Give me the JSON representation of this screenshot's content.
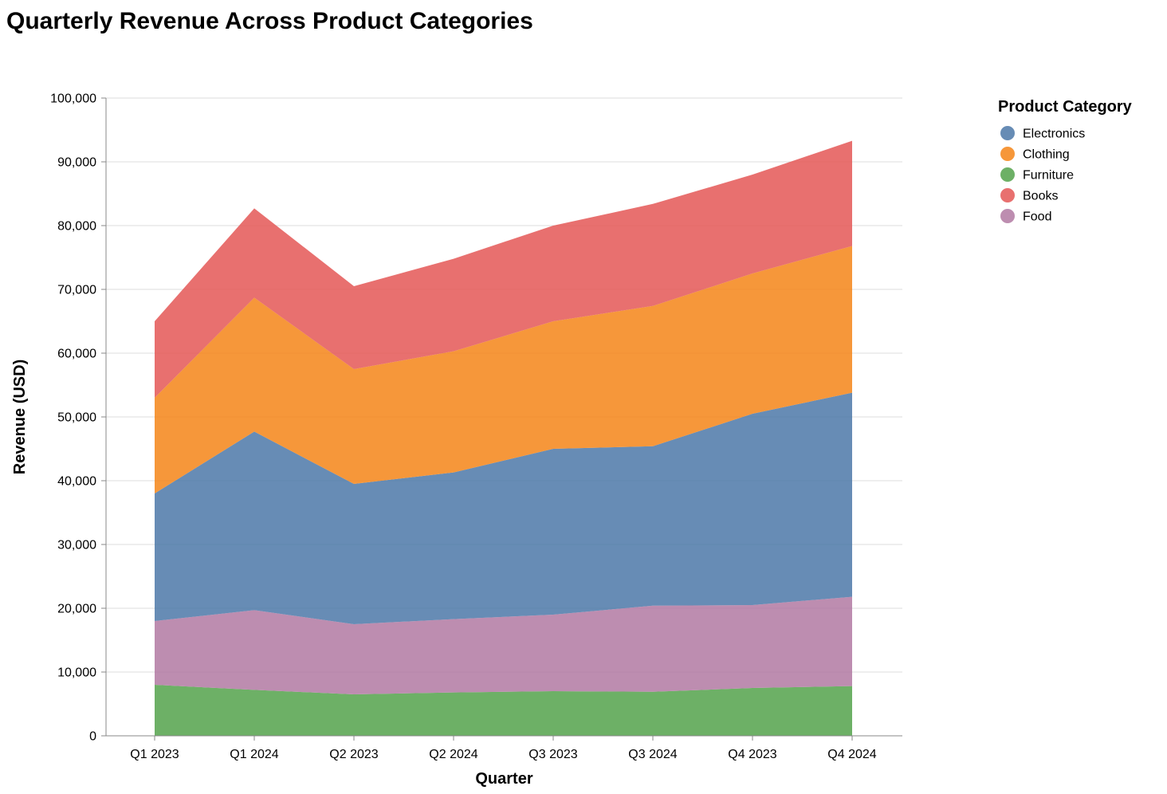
{
  "chart_data": {
    "type": "area",
    "stacked": true,
    "title": "Quarterly Revenue Across Product Categories",
    "xlabel": "Quarter",
    "ylabel": "Revenue (USD)",
    "ylim": [
      0,
      100000
    ],
    "y_ticks": [
      0,
      10000,
      20000,
      30000,
      40000,
      50000,
      60000,
      70000,
      80000,
      90000,
      100000
    ],
    "y_tick_labels": [
      "0",
      "10,000",
      "20,000",
      "30,000",
      "40,000",
      "50,000",
      "60,000",
      "70,000",
      "80,000",
      "90,000",
      "100,000"
    ],
    "grid": true,
    "legend_title": "Product Category",
    "legend_position": "top-right",
    "categories": [
      "Q1 2023",
      "Q1 2024",
      "Q2 2023",
      "Q2 2024",
      "Q3 2023",
      "Q3 2024",
      "Q4 2023",
      "Q4 2024"
    ],
    "stack_order": [
      "Furniture",
      "Food",
      "Electronics",
      "Clothing",
      "Books"
    ],
    "series": [
      {
        "name": "Electronics",
        "color": "#4c78a8",
        "values": [
          20000,
          28000,
          22000,
          23000,
          26000,
          25000,
          30000,
          32000
        ]
      },
      {
        "name": "Clothing",
        "color": "#f58518",
        "values": [
          15000,
          21000,
          18000,
          19000,
          20000,
          22000,
          22000,
          23000
        ]
      },
      {
        "name": "Furniture",
        "color": "#54a24b",
        "values": [
          8000,
          7200,
          6500,
          6800,
          7000,
          6900,
          7500,
          7800
        ]
      },
      {
        "name": "Books",
        "color": "#e45756",
        "values": [
          12000,
          14000,
          13000,
          14500,
          15000,
          16000,
          15500,
          16500
        ]
      },
      {
        "name": "Food",
        "color": "#b279a2",
        "values": [
          10000,
          12500,
          11000,
          11500,
          12000,
          13500,
          13000,
          14000
        ]
      }
    ]
  }
}
